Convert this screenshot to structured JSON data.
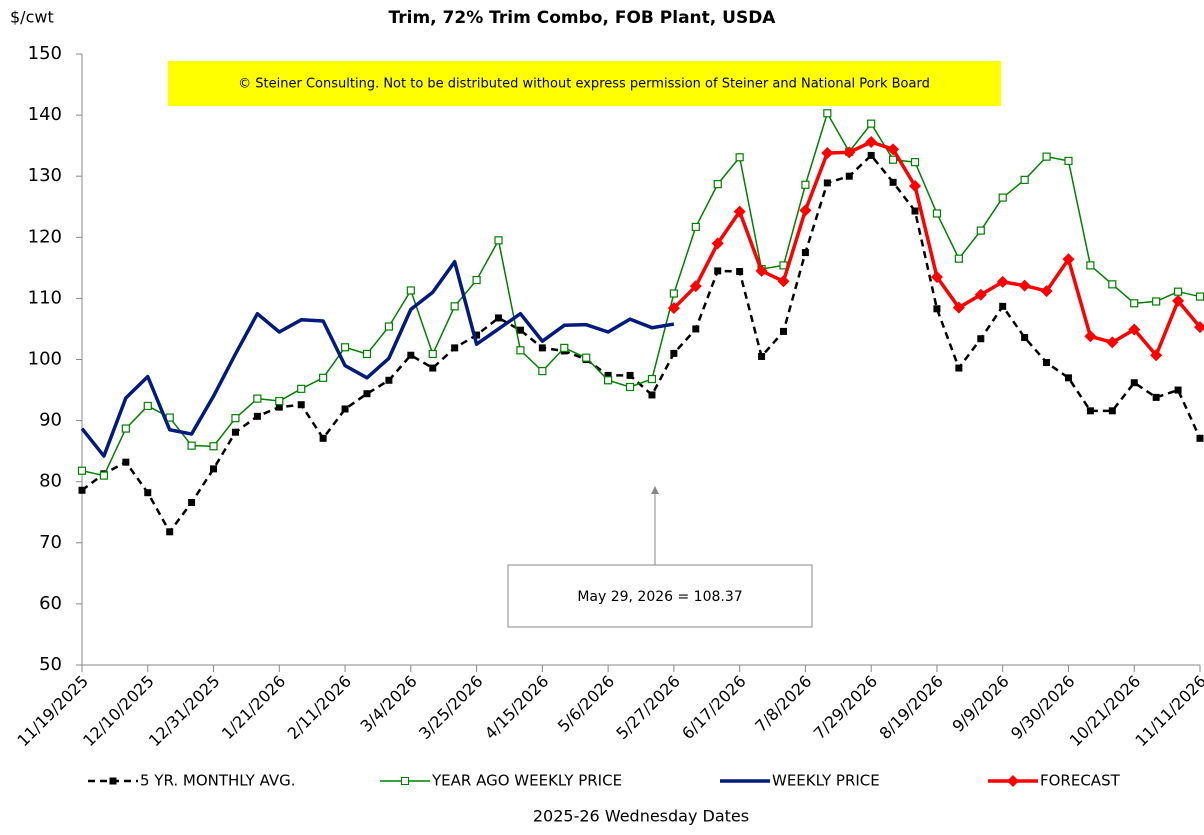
{
  "chart_data": {
    "type": "line",
    "title": "Trim, 72% Trim Combo, FOB Plant, USDA",
    "y_label": "$/cwt",
    "x_label": "2025-26 Wednesday Dates",
    "copyright": "© Steiner Consulting.  Not to be distributed without express permission of Steiner and National Pork Board",
    "annotation": "May 29, 2026  = 108.37",
    "categories": [
      "11/19/2025",
      null,
      null,
      "12/10/2025",
      null,
      null,
      "12/31/2025",
      null,
      null,
      "1/21/2026",
      null,
      null,
      "2/11/2026",
      null,
      null,
      "3/4/2026",
      null,
      null,
      "3/25/2026",
      null,
      null,
      "4/15/2026",
      null,
      null,
      "5/6/2026",
      null,
      null,
      "5/27/2026",
      null,
      null,
      "6/17/2026",
      null,
      null,
      "7/8/2026",
      null,
      null,
      "7/29/2026",
      null,
      null,
      "8/19/2026",
      null,
      null,
      "9/9/2026",
      null,
      null,
      "9/30/2026",
      null,
      null,
      "10/21/2026",
      null,
      null,
      "11/11/2026"
    ],
    "ylim": [
      50,
      150
    ],
    "yticks": [
      50,
      60,
      70,
      80,
      90,
      100,
      110,
      120,
      130,
      140,
      150
    ],
    "grid": false,
    "legend": "bottom",
    "series": [
      {
        "name": "5 YR. MONTHLY AVG.",
        "color": "#000000",
        "dash": true,
        "marker": "square",
        "values": [
          78.6,
          81.3,
          83.2,
          78.2,
          71.8,
          76.6,
          82.1,
          88.1,
          90.7,
          92.2,
          92.6,
          87.1,
          91.9,
          94.4,
          96.6,
          100.7,
          98.6,
          101.9,
          104,
          106.8,
          104.8,
          101.9,
          101.4,
          100,
          97.4,
          97.4,
          94.2,
          101,
          105,
          114.5,
          114.4,
          100.5,
          104.6,
          117.5,
          128.9,
          130,
          133.4,
          129,
          124.3,
          108.3,
          98.6,
          103.4,
          108.7,
          103.6,
          99.5,
          97,
          91.6,
          91.6,
          96.2,
          93.8,
          95,
          87.1
        ]
      },
      {
        "name": "YEAR AGO WEEKLY PRICE",
        "color": "#008000",
        "dash": false,
        "marker": "open-square",
        "values": [
          81.8,
          81,
          88.7,
          92.4,
          90.5,
          85.9,
          85.8,
          90.4,
          93.6,
          93.2,
          95.2,
          97,
          102,
          100.9,
          105.4,
          111.3,
          100.9,
          108.7,
          113,
          119.5,
          101.5,
          98.1,
          101.9,
          100.3,
          96.6,
          95.5,
          96.8,
          110.8,
          121.7,
          128.7,
          133.1,
          114.8,
          115.4,
          128.6,
          140.3,
          134,
          138.6,
          132.7,
          132.3,
          123.9,
          116.5,
          121.1,
          126.5,
          129.4,
          133.2,
          132.5,
          115.4,
          112.3,
          109.2,
          109.5,
          111.1,
          110.3
        ]
      },
      {
        "name": "WEEKLY PRICE",
        "color": "#001a80",
        "dash": false,
        "marker": "none",
        "values": [
          88.7,
          84.2,
          93.7,
          97.2,
          88.5,
          87.8,
          94,
          100.9,
          107.5,
          104.5,
          106.5,
          106.3,
          99,
          97,
          100.2,
          108.2,
          111,
          116,
          102.5,
          105,
          107.5,
          103,
          105.6,
          105.7,
          104.5,
          106.6,
          105.2,
          105.8,
          null,
          null,
          null,
          null,
          null,
          null,
          null,
          null,
          null,
          null,
          null,
          null,
          null,
          null,
          null,
          null,
          null,
          null,
          null,
          null,
          null,
          null,
          null,
          null
        ]
      },
      {
        "name": "FORECAST",
        "color": "#ff0000",
        "dash": false,
        "marker": "diamond",
        "values": [
          null,
          null,
          null,
          null,
          null,
          null,
          null,
          null,
          null,
          null,
          null,
          null,
          null,
          null,
          null,
          null,
          null,
          null,
          null,
          null,
          null,
          null,
          null,
          null,
          null,
          null,
          null,
          108.4,
          112,
          119,
          124.2,
          114.5,
          112.8,
          124.4,
          133.8,
          133.9,
          135.6,
          134.4,
          128.4,
          113.5,
          108.5,
          110.6,
          112.7,
          112.1,
          111.2,
          116.4,
          103.8,
          102.8,
          104.9,
          100.7,
          109.6,
          105.3
        ]
      }
    ]
  }
}
